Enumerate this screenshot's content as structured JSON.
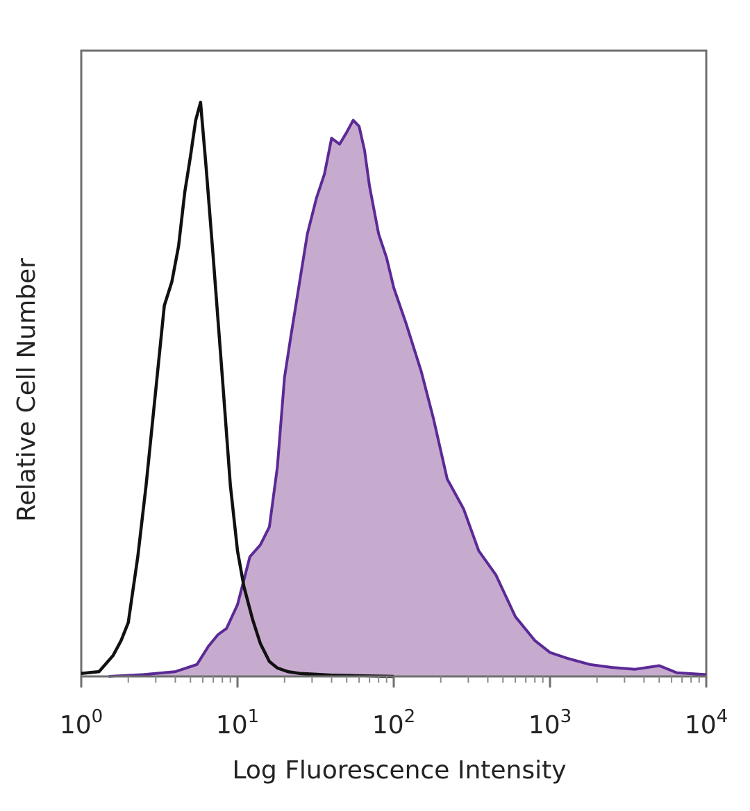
{
  "chart_data": {
    "type": "area",
    "xlabel": "Log Fluorescence Intensity",
    "ylabel": "Relative Cell Number",
    "x_scale": "log",
    "xlim": [
      1,
      10000
    ],
    "ylim": [
      0,
      100
    ],
    "grid": false,
    "legend": "none",
    "x_ticks": [
      {
        "base": "10",
        "exp": "0",
        "value": 1
      },
      {
        "base": "10",
        "exp": "1",
        "value": 10
      },
      {
        "base": "10",
        "exp": "2",
        "value": 100
      },
      {
        "base": "10",
        "exp": "3",
        "value": 1000
      },
      {
        "base": "10",
        "exp": "4",
        "value": 10000
      }
    ],
    "series": [
      {
        "style": "line",
        "color": "#111111",
        "x": [
          1.0,
          1.3,
          1.6,
          1.8,
          2.0,
          2.3,
          2.6,
          3.0,
          3.4,
          3.8,
          4.2,
          4.6,
          5.0,
          5.4,
          5.8,
          6.3,
          7.0,
          8.0,
          9.0,
          10.0,
          11.0,
          12.5,
          14.0,
          16.0,
          18.0,
          21.0,
          25.0,
          30.0,
          40.0,
          60.0,
          100.0
        ],
        "values": [
          0.5,
          0.8,
          3.5,
          6,
          9,
          20,
          32,
          48,
          62,
          66,
          72,
          81,
          87,
          93,
          96,
          85,
          70,
          50,
          32,
          21,
          15,
          9.5,
          5.5,
          2.5,
          1.4,
          0.8,
          0.5,
          0.4,
          0.2,
          0.1,
          0
        ]
      },
      {
        "style": "filled",
        "color": "#5b2a96",
        "fill": "#c7abcf",
        "x": [
          1.5,
          2.5,
          4.0,
          5.5,
          6.5,
          7.5,
          8.5,
          10.0,
          12.0,
          14.0,
          16.0,
          18.0,
          20.0,
          22.0,
          25.0,
          28.0,
          32.0,
          36.0,
          40.0,
          45.0,
          50.0,
          55.0,
          60.0,
          65.0,
          70.0,
          80.0,
          90.0,
          100.0,
          120.0,
          150.0,
          180.0,
          220.0,
          280.0,
          350.0,
          450.0,
          600.0,
          800.0,
          1000.0,
          1300.0,
          1800.0,
          2500.0,
          3500.0,
          5000.0,
          6500.0,
          10000.0
        ],
        "values": [
          0,
          0.3,
          0.8,
          2,
          5,
          7,
          8,
          12,
          20,
          22,
          25,
          35,
          50,
          57,
          66,
          74,
          80,
          84,
          90,
          89,
          91,
          93,
          92,
          88,
          82,
          74,
          70,
          65,
          59,
          51,
          43,
          33,
          28,
          21,
          17,
          10,
          6,
          4,
          3,
          2,
          1.5,
          1.2,
          1.8,
          0.6,
          0.3
        ]
      }
    ]
  }
}
